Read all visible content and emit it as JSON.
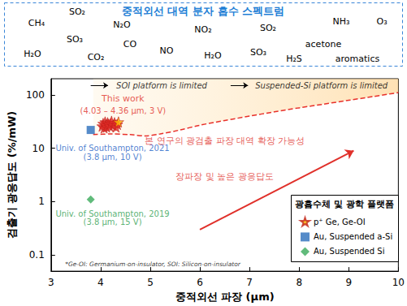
{
  "header": {
    "title": "중적외선 대역 분자 흡수 스펙트럼",
    "molecules": [
      "CH₄",
      "SO₂",
      "N₂O",
      "H₂O",
      "SO₃",
      "CO₂",
      "CO",
      "NO",
      "NO₂",
      "H₂O",
      "SO₂",
      "SO₃",
      "H₂S",
      "acetone",
      "NH₃",
      "O₃",
      "aromatics"
    ]
  },
  "chart_data": {
    "type": "scatter",
    "x_label": "중적외선 파장 (µm)",
    "y_label": "검출기 광응답도 (%/mW)",
    "log": "y",
    "grid": false,
    "xlim": [
      3,
      10
    ],
    "xticks": [
      3,
      4,
      5,
      6,
      7,
      8,
      9,
      10
    ],
    "ylim": [
      0.05,
      200
    ],
    "yticks": [
      0.1,
      1,
      10,
      100
    ],
    "legend": "bottom-right",
    "legend_title": "광흡수체 및 광학 플랫폼",
    "series": [
      {
        "name": "p⁺ Ge, Ge-OI",
        "type": "scatter",
        "marker": "star",
        "color": "#ffc000",
        "colors": [
          "#e8302a",
          "#e8302a",
          "#e8302a",
          "#e8302a",
          "#e8302a",
          "#e8302a",
          "#e8302a",
          "#e8302a",
          "#e8302a",
          "#e8302a",
          "#e8302a",
          "#e8302a",
          "#e8302a",
          "#e8302a",
          "#e8302a",
          "#ffc000"
        ],
        "x": [
          4.03,
          4.05,
          4.07,
          4.09,
          4.1,
          4.12,
          4.14,
          4.16,
          4.18,
          4.2,
          4.22,
          4.25,
          4.28,
          4.31,
          4.34,
          4.36
        ],
        "values": [
          26,
          29,
          24,
          31,
          27,
          25,
          30,
          28,
          26,
          29,
          32,
          27,
          30,
          25,
          28,
          31
        ]
      },
      {
        "name": "Au, Suspended a-Si",
        "type": "scatter",
        "marker": "square",
        "color": "#2a6ebb",
        "x": [
          3.8
        ],
        "values": [
          22
        ]
      },
      {
        "name": "Au, Suspended Si",
        "type": "scatter",
        "marker": "diamond",
        "color": "#3aaa5a",
        "x": [
          3.8
        ],
        "values": [
          1.1
        ]
      },
      {
        "type": "line",
        "line_style": "dashed",
        "color": "#e8302a",
        "x": [
          3.85,
          4.2,
          4.6,
          4.9,
          5.2,
          5.6,
          6,
          6.5,
          7,
          7.5,
          8,
          8.5,
          9,
          9.5,
          10
        ],
        "values": [
          18,
          18.5,
          18,
          17,
          18.5,
          22,
          27,
          33,
          40,
          48,
          57,
          67,
          79,
          93,
          110
        ]
      }
    ],
    "annotations": {
      "this_work": "This work",
      "this_work_detail": "(4.03 – 4.36 µm, 3 V)",
      "soton_2021": "Univ. of Southampton, 2021",
      "soton_2021_detail": "(3.8 µm, 10 V)",
      "soton_2019": "Univ. of Southampton, 2019",
      "soton_2019_detail": "(3.8 µm, 15 V)",
      "extension": "본 연구의 광검출 파장 대역 확장 가능성",
      "trend": "장파장 및 높은 광응답도",
      "soi_limit": "SOI platform is limited",
      "suspended_limit": "Suspended-Si platform is limited",
      "footnote": "*Ge-OI: Germanium-on-insulator, SOI: Silicon-on-insulator"
    }
  }
}
